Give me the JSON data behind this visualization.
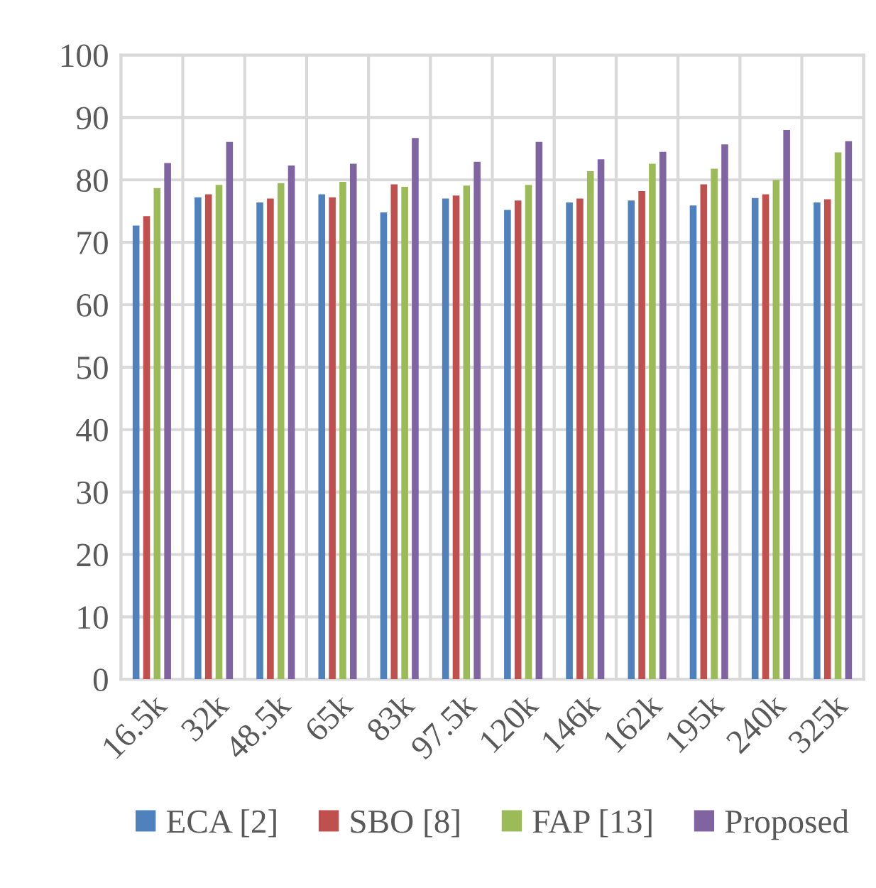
{
  "chart_data": {
    "type": "bar",
    "categories": [
      "16.5k",
      "32k",
      "48.5k",
      "65k",
      "83k",
      "97.5k",
      "120k",
      "146k",
      "162k",
      "195k",
      "240k",
      "325k"
    ],
    "series": [
      {
        "name": "ECA [2]",
        "color": "#4f81bd",
        "values": [
          72.7,
          77.2,
          76.4,
          77.7,
          74.8,
          77.0,
          75.2,
          76.4,
          76.7,
          75.9,
          77.1,
          76.4
        ]
      },
      {
        "name": "SBO [8]",
        "color": "#c0504d",
        "values": [
          74.2,
          77.7,
          77.0,
          77.2,
          79.3,
          77.5,
          76.7,
          77.0,
          78.2,
          79.3,
          77.7,
          76.9
        ]
      },
      {
        "name": "FAP [13]",
        "color": "#9bbb59",
        "values": [
          78.7,
          79.2,
          79.5,
          79.7,
          78.9,
          79.1,
          79.2,
          81.4,
          82.6,
          81.8,
          80.0,
          84.4
        ]
      },
      {
        "name": "Proposed",
        "color": "#8064a2",
        "values": [
          82.7,
          86.1,
          82.3,
          82.6,
          86.7,
          82.9,
          86.1,
          83.3,
          84.5,
          85.7,
          88.0,
          86.2
        ]
      }
    ],
    "ylim": [
      0,
      100
    ],
    "yticks": [
      0,
      10,
      20,
      30,
      40,
      50,
      60,
      70,
      80,
      90,
      100
    ],
    "grid": true,
    "legend": "bottom"
  }
}
